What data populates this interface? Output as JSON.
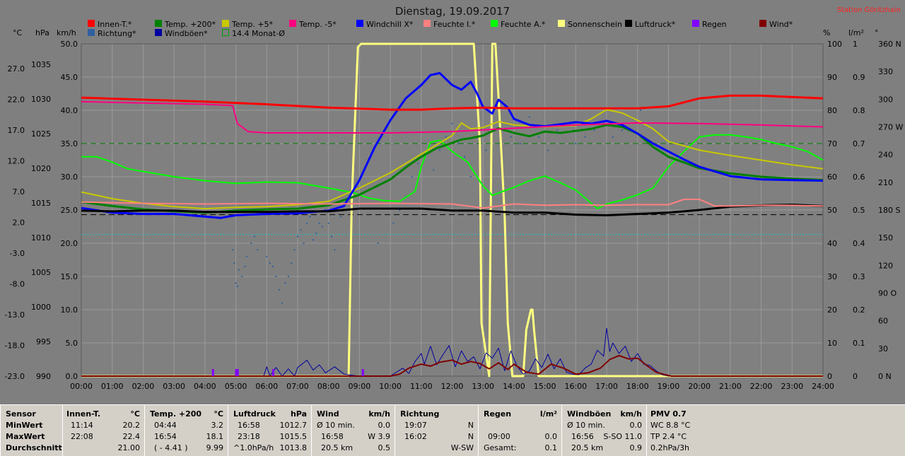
{
  "title": "Dienstag, 19.09.2017",
  "station": "Station Göritzhain",
  "units": {
    "c": "°C",
    "hpa": "hPa",
    "kmh": "km/h",
    "pct": "%",
    "lm2": "l/m²",
    "deg": "°"
  },
  "legend": [
    {
      "label": "Innen-T.*",
      "color": "#ff0000"
    },
    {
      "label": "Temp. +200*",
      "color": "#008000"
    },
    {
      "label": "Temp. +5*",
      "color": "#c8c800"
    },
    {
      "label": "Temp. -5*",
      "color": "#ff0080"
    },
    {
      "label": "Windchill X*",
      "color": "#0000ff"
    },
    {
      "label": "Feuchte I.*",
      "color": "#ff8080"
    },
    {
      "label": "Feuchte A.*",
      "color": "#00ff00"
    },
    {
      "label": "Sonnenschein",
      "color": "#ffff80"
    },
    {
      "label": "Luftdruck*",
      "color": "#000000"
    },
    {
      "label": "Regen",
      "color": "#8000ff"
    },
    {
      "label": "Wind*",
      "color": "#800000"
    },
    {
      "label": "Richtung*",
      "color": "#3060a0"
    },
    {
      "label": "Windböen*",
      "color": "#0000a0"
    },
    {
      "label": "14.4 Monat-Ø",
      "color": "#00a000",
      "outline": true
    }
  ],
  "chart_data": {
    "type": "line",
    "x_ticks": [
      "00:00",
      "01:00",
      "02:00",
      "03:00",
      "04:00",
      "05:00",
      "06:00",
      "07:00",
      "08:00",
      "09:00",
      "10:00",
      "11:00",
      "12:00",
      "13:00",
      "14:00",
      "15:00",
      "16:00",
      "17:00",
      "18:00",
      "19:00",
      "20:00",
      "21:00",
      "22:00",
      "23:00",
      "24:00"
    ],
    "axis_c": [
      "27.0",
      "22.0",
      "17.0",
      "12.0",
      "7.0",
      "2.0",
      "-3.0",
      "-8.0",
      "-13.0",
      "-18.0",
      "-23.0"
    ],
    "axis_hpa": [
      "1035",
      "1030",
      "1025",
      "1020",
      "1015",
      "1010",
      "1005",
      "1000",
      "995",
      "990"
    ],
    "axis_kmh": [
      "50.0",
      "45.0",
      "40.0",
      "35.0",
      "30.0",
      "25.0",
      "20.0",
      "15.0",
      "10.0",
      "5.0",
      "0.0"
    ],
    "axis_pct": [
      "100",
      "90",
      "80",
      "70",
      "60",
      "50",
      "40",
      "30",
      "20",
      "10",
      "0"
    ],
    "axis_lm2": [
      "1",
      "0.9",
      "0.8",
      "0.7",
      "0.6",
      "0.5",
      "0.4",
      "0.3",
      "0.2",
      "0.1",
      "0"
    ],
    "axis_deg": [
      "360 N",
      "330",
      "300",
      "270 W",
      "240",
      "210",
      "180 S",
      "150",
      "120",
      "90 O",
      "60",
      "30",
      "0 N"
    ],
    "ylim_kmh": [
      0,
      50
    ],
    "grid": true,
    "series": [
      {
        "name": "Innen-T.*",
        "color": "#ff0000",
        "width": 3,
        "x": [
          0,
          2,
          4,
          6,
          8,
          10,
          11,
          12,
          13,
          14,
          16,
          18,
          19,
          20,
          21,
          22,
          23,
          24
        ],
        "y": [
          41.9,
          41.6,
          41.3,
          40.9,
          40.4,
          40.1,
          40.1,
          40.3,
          40.4,
          40.3,
          40.3,
          40.3,
          40.6,
          41.8,
          42.2,
          42.2,
          42.0,
          41.8
        ]
      },
      {
        "name": "Temp. -5*",
        "color": "#ff0080",
        "width": 2,
        "x": [
          0,
          2,
          4,
          4.9,
          5.05,
          5.4,
          6,
          8,
          10,
          12,
          14,
          16,
          18,
          20,
          22,
          24
        ],
        "y": [
          41.3,
          41.1,
          40.9,
          40.7,
          38.0,
          36.8,
          36.6,
          36.6,
          36.6,
          36.8,
          37.3,
          37.8,
          38.1,
          38.0,
          37.8,
          37.5
        ]
      },
      {
        "name": "Feuchte A.*",
        "color": "#00ff00",
        "width": 2,
        "x": [
          0,
          0.5,
          1,
          1.5,
          2,
          3,
          4,
          5,
          6,
          7,
          8,
          8.8,
          9.3,
          9.8,
          10.3,
          10.8,
          11,
          11.3,
          11.6,
          12,
          12.5,
          13,
          13.3,
          13.7,
          14,
          14.5,
          15,
          15.5,
          16,
          16.5,
          16.7,
          17,
          17.5,
          18,
          18.5,
          19,
          19.5,
          20,
          20.5,
          21,
          21.5,
          22,
          22.5,
          23,
          23.5,
          24
        ],
        "y": [
          33.0,
          33.0,
          32.2,
          31.2,
          30.8,
          30.0,
          29.4,
          29.0,
          29.2,
          29.1,
          28.3,
          27.6,
          26.8,
          26.4,
          26.3,
          27.8,
          31.5,
          35.2,
          35.5,
          33.8,
          32.2,
          28.6,
          27.2,
          27.9,
          28.4,
          29.4,
          30.1,
          29.1,
          28.0,
          26.0,
          25.2,
          25.9,
          26.5,
          27.3,
          28.3,
          31.5,
          33.8,
          36.0,
          36.3,
          36.3,
          36.0,
          35.6,
          35.0,
          34.5,
          33.8,
          32.5
        ]
      },
      {
        "name": "Temp. +5*",
        "color": "#c8c800",
        "width": 2,
        "x": [
          0,
          1,
          2,
          3,
          4,
          5,
          6,
          7,
          8,
          9,
          10,
          11,
          12,
          12.3,
          12.6,
          13,
          13.5,
          14,
          15,
          16,
          16.5,
          17,
          17.5,
          18,
          18.5,
          19,
          20,
          21,
          22,
          23,
          24
        ],
        "y": [
          27.7,
          26.7,
          26.0,
          25.5,
          25.2,
          25.4,
          25.5,
          25.8,
          26.3,
          28.3,
          30.6,
          33.4,
          36.2,
          38.1,
          37.2,
          37.4,
          38.3,
          37.8,
          37.5,
          37.7,
          38.7,
          40.1,
          39.6,
          38.5,
          37.2,
          35.3,
          34.0,
          33.2,
          32.5,
          31.8,
          31.2
        ]
      },
      {
        "name": "Temp. +200*",
        "color": "#008000",
        "width": 3,
        "x": [
          0,
          1,
          2,
          3,
          4,
          5,
          6,
          7,
          8,
          9,
          10,
          10.5,
          11,
          11.5,
          12,
          12.3,
          12.6,
          13,
          13.5,
          14,
          14.5,
          15,
          15.5,
          16,
          16.5,
          17,
          17.5,
          18,
          18.5,
          19,
          20,
          21,
          22,
          23,
          24
        ],
        "y": [
          26.2,
          25.6,
          25.1,
          24.8,
          24.6,
          24.9,
          25.1,
          25.2,
          25.7,
          27.3,
          29.6,
          31.4,
          33.0,
          34.3,
          35.1,
          35.6,
          35.8,
          36.2,
          37.3,
          36.6,
          36.1,
          36.8,
          36.6,
          36.9,
          37.2,
          37.8,
          37.5,
          36.5,
          34.5,
          33.0,
          31.3,
          30.5,
          30.0,
          29.7,
          29.5
        ]
      },
      {
        "name": "Windchill X*",
        "color": "#0000ff",
        "width": 3,
        "x": [
          0,
          1,
          2,
          3,
          4,
          4.5,
          5,
          6,
          7,
          8,
          8.5,
          9,
          9.5,
          10,
          10.5,
          11,
          11.3,
          11.6,
          12,
          12.3,
          12.6,
          12.8,
          13,
          13.3,
          13.5,
          13.8,
          14,
          14.5,
          15,
          15.5,
          16,
          16.5,
          17,
          17.5,
          18,
          18.5,
          19,
          19.5,
          20,
          21,
          22,
          23,
          24
        ],
        "y": [
          25.3,
          24.6,
          24.4,
          24.4,
          24.0,
          23.8,
          24.2,
          24.4,
          24.5,
          24.9,
          25.6,
          29.5,
          34.5,
          38.5,
          41.8,
          43.8,
          45.3,
          45.6,
          43.8,
          43.1,
          44.3,
          42.6,
          40.5,
          39.5,
          41.6,
          40.4,
          38.7,
          37.8,
          37.6,
          37.9,
          38.2,
          38.0,
          38.4,
          37.8,
          36.5,
          35.0,
          33.8,
          32.6,
          31.5,
          30.1,
          29.6,
          29.5,
          29.4
        ]
      },
      {
        "name": "Luftdruck*",
        "color": "#000000",
        "width": 3,
        "x": [
          0,
          1,
          2,
          3,
          4,
          5,
          6,
          7,
          8,
          9,
          10,
          11,
          12,
          13,
          14,
          15,
          16,
          17,
          18,
          19,
          20,
          21,
          22,
          23,
          24
        ],
        "y": [
          24.9,
          24.8,
          24.9,
          24.9,
          24.7,
          24.7,
          24.7,
          24.8,
          24.8,
          25.2,
          25.2,
          25.2,
          24.9,
          24.9,
          24.6,
          24.6,
          24.3,
          24.2,
          24.4,
          24.6,
          25.0,
          25.5,
          25.7,
          25.8,
          25.6
        ]
      },
      {
        "name": "Feuchte I.*",
        "color": "#ff8080",
        "width": 2,
        "x": [
          0,
          2,
          4,
          6,
          8,
          10,
          12,
          13,
          14,
          15,
          16,
          17,
          18,
          19,
          19.5,
          20,
          20.5,
          21,
          22,
          23,
          24
        ],
        "y": [
          26.2,
          26.0,
          25.9,
          26.0,
          25.9,
          26.0,
          25.9,
          25.3,
          25.9,
          25.7,
          25.8,
          25.7,
          25.8,
          25.8,
          26.6,
          26.6,
          25.6,
          25.6,
          25.7,
          25.7,
          25.6
        ]
      },
      {
        "name": "Sonnenschein",
        "color": "#ffff80",
        "width": 3,
        "x": [
          0,
          8.65,
          8.75,
          8.95,
          9.05,
          12.6,
          12.7,
          12.9,
          12.95,
          13.2,
          13.3,
          13.4,
          13.5,
          13.7,
          13.8,
          13.95,
          14.1,
          14.3,
          14.4,
          14.55,
          14.6,
          14.65,
          14.8,
          24
        ],
        "y": [
          0,
          0,
          26,
          49.5,
          50,
          50,
          50,
          35,
          8,
          0,
          50,
          50,
          42,
          24,
          8,
          0,
          0,
          0,
          7,
          10,
          10,
          7,
          0,
          0
        ]
      },
      {
        "name": "Windböen*",
        "color": "#0000a0",
        "width": 1,
        "x": [
          0,
          5.9,
          6,
          6.1,
          6.3,
          6.5,
          6.7,
          6.9,
          7,
          7.3,
          7.5,
          7.7,
          7.9,
          8.2,
          8.5,
          9,
          10,
          10.4,
          10.6,
          10.8,
          11,
          11.1,
          11.3,
          11.5,
          11.7,
          11.9,
          12.1,
          12.3,
          12.5,
          12.7,
          12.9,
          13.1,
          13.3,
          13.5,
          13.7,
          13.9,
          14.1,
          14.3,
          14.5,
          14.7,
          14.9,
          15.1,
          15.3,
          15.5,
          15.7,
          15.9,
          16.1,
          16.3,
          16.5,
          16.7,
          16.9,
          17,
          17.1,
          17.2,
          17.4,
          17.6,
          17.8,
          18,
          18.2,
          18.4,
          18.6,
          18.8,
          19,
          24
        ],
        "y": [
          0,
          0,
          1.4,
          0,
          1.3,
          0,
          1.1,
          0,
          1.3,
          2.4,
          0.9,
          1.7,
          0.5,
          1.4,
          0.3,
          0,
          0,
          1.2,
          0.4,
          2.2,
          3.4,
          1.8,
          4.5,
          1.7,
          3.2,
          4.6,
          1.4,
          3.8,
          2.2,
          2.9,
          1.1,
          3.5,
          2.7,
          4.2,
          0.8,
          3.8,
          1.5,
          0.3,
          0.8,
          2.6,
          1.3,
          3.3,
          1.1,
          2.6,
          0.6,
          0.3,
          0.2,
          1.2,
          1.8,
          3.9,
          3.0,
          7.2,
          3.7,
          5.0,
          3.4,
          4.5,
          2.2,
          3.4,
          1.8,
          1.6,
          0.8,
          0.2,
          0,
          0
        ]
      },
      {
        "name": "Wind*",
        "color": "#800000",
        "width": 2,
        "x": [
          0,
          10,
          10.3,
          10.6,
          11,
          11.3,
          11.6,
          12,
          12.3,
          12.6,
          12.9,
          13.2,
          13.5,
          13.8,
          14,
          14.4,
          14.8,
          15.2,
          15.6,
          16,
          16.4,
          16.8,
          17.1,
          17.4,
          17.7,
          18,
          18.3,
          18.6,
          18.9,
          19.1,
          24
        ],
        "y": [
          0,
          0,
          0.3,
          1.2,
          1.8,
          1.5,
          2.1,
          2.4,
          1.8,
          2.2,
          1.9,
          1.1,
          2.0,
          1.0,
          1.8,
          0.6,
          0.3,
          1.8,
          1.2,
          0.3,
          0.5,
          1.2,
          2.5,
          3.1,
          2.6,
          2.7,
          1.6,
          0.6,
          0.2,
          0,
          0
        ]
      }
    ],
    "dashed_lines": [
      {
        "y": 35.0,
        "color": "#008000"
      },
      {
        "y": 24.3,
        "color": "#000000"
      },
      {
        "y": 21.3,
        "color": "#20c0c0",
        "dotted": true
      }
    ],
    "rain_marks": [
      4.25,
      5.0,
      5.05,
      6.2,
      9.1
    ],
    "direction_dots": {
      "color": "#3060a0",
      "x": [
        4.9,
        4.95,
        5.0,
        5.05,
        5.1,
        5.2,
        5.3,
        5.35,
        5.5,
        5.6,
        5.7,
        6.0,
        6.1,
        6.2,
        6.3,
        6.4,
        6.5,
        6.6,
        6.7,
        6.8,
        6.9,
        7.0,
        7.1,
        7.2,
        7.3,
        7.4,
        7.5,
        7.6,
        7.7,
        7.8,
        7.9,
        8.0,
        8.1,
        8.2,
        8.4,
        8.5,
        9.6,
        10.1,
        10.3,
        10.5,
        10.7,
        10.9,
        11.1,
        11.4,
        11.6,
        11.8,
        12.0,
        12.2,
        12.4,
        12.6,
        12.8,
        13.1,
        13.3,
        13.6,
        13.9,
        14.2,
        14.5,
        14.8,
        15.1,
        15.4,
        15.7,
        16.0,
        16.3,
        16.6,
        16.9,
        17.2,
        17.5,
        17.8,
        18.1
      ],
      "y": [
        19,
        17,
        14,
        13.5,
        16,
        15,
        16.5,
        18,
        20,
        21,
        19,
        18,
        17,
        16.5,
        15,
        13,
        11,
        14,
        15,
        17,
        19,
        21,
        22,
        20,
        23,
        24,
        20.5,
        21.5,
        23,
        22.5,
        25,
        23,
        21,
        19,
        24,
        26,
        20,
        23,
        25,
        27,
        30,
        32,
        33,
        31,
        34,
        36,
        38,
        35,
        33,
        30,
        36,
        34,
        38,
        37,
        36,
        35,
        39,
        36,
        34,
        37,
        38,
        35,
        36,
        37,
        38,
        36,
        37,
        39,
        40
      ]
    }
  },
  "stats": {
    "row_labels": {
      "title": "Sensor",
      "min": "MinWert",
      "max": "MaxWert",
      "avg": "Durchschnitt"
    },
    "innen": {
      "title": "Innen-T.",
      "unit": "°C",
      "min_t": "11:14",
      "min_v": "20.2",
      "max_t": "22:08",
      "max_v": "22.4",
      "avg": "21.00"
    },
    "temp": {
      "title": "Temp. +200",
      "unit": "°C",
      "min_t": "04:44",
      "min_v": "3.2",
      "max_t": "16:54",
      "max_v": "18.1",
      "avg_a": "( - 4.41 )",
      "avg": "9.99"
    },
    "druck": {
      "title": "Luftdruck",
      "unit": "hPa",
      "min_t": "16:58",
      "min_v": "1012.7",
      "max_t": "23:18",
      "max_v": "1015.5",
      "avg_a": "^1.0hPa/h",
      "avg": "1013.8"
    },
    "wind": {
      "title": "Wind",
      "unit": "km/h",
      "min_t": "Ø 10 min.",
      "min_v": "0.0",
      "max_t": "16:58",
      "max_v": "W 3.9",
      "avg_a": "20.5 km",
      "avg": "0.5"
    },
    "richt": {
      "title": "Richtung",
      "min_t": "19:07",
      "min_v": "N",
      "max_t": "16:02",
      "max_v": "N",
      "avg": "W-SW"
    },
    "regen": {
      "title": "Regen",
      "unit": "l/m²",
      "max_t": "09:00",
      "max_v": "0.0",
      "avg_a": "Gesamt:",
      "avg": "0.1"
    },
    "boen": {
      "title": "Windböen",
      "unit": "km/h",
      "min_t": "Ø 10 min.",
      "min_v": "0.0",
      "max_t": "16:56",
      "max_v": "S-SO 11.0",
      "avg_a": "20.5 km",
      "avg": "0.9"
    },
    "pmv": {
      "title": "PMV 0.7",
      "l1": "WC 8.8 °C",
      "l2": "TP 2.4 °C",
      "l3": "0.2hPa/3h"
    }
  }
}
